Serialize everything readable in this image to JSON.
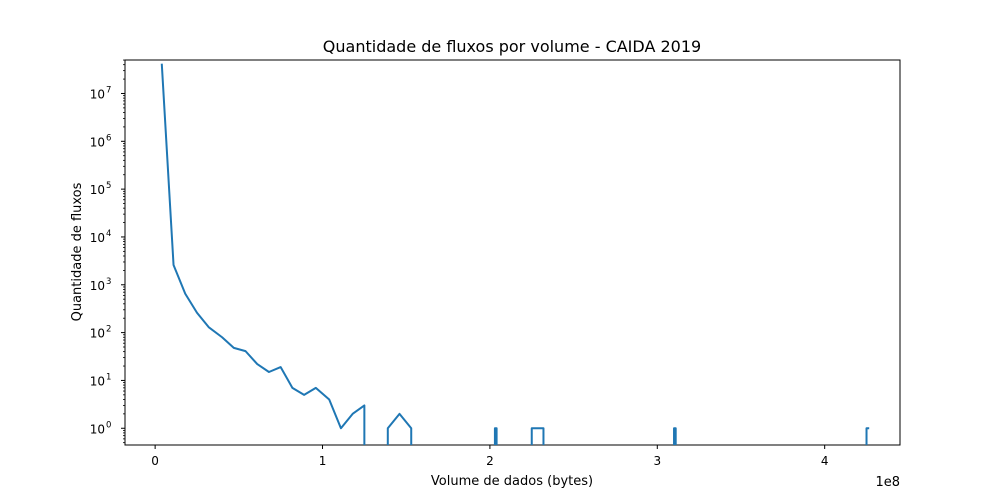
{
  "chart_data": {
    "type": "line",
    "title": "Quantidade de fluxos por volume - CAIDA 2019",
    "xlabel": "Volume de dados (bytes)",
    "ylabel": "Quantidade de fluxos",
    "x_offset_label": "1e8",
    "x_scale": "linear",
    "y_scale": "log",
    "xlim": [
      -0.18,
      4.45
    ],
    "ylim_log10": [
      -0.35,
      7.7
    ],
    "x_ticks": [
      {
        "value": 0,
        "label": "0"
      },
      {
        "value": 1,
        "label": "1"
      },
      {
        "value": 2,
        "label": "2"
      },
      {
        "value": 3,
        "label": "3"
      },
      {
        "value": 4,
        "label": "4"
      }
    ],
    "y_ticks": [
      {
        "exp": 0,
        "base": "10",
        "sup": "0"
      },
      {
        "exp": 1,
        "base": "10",
        "sup": "1"
      },
      {
        "exp": 2,
        "base": "10",
        "sup": "2"
      },
      {
        "exp": 3,
        "base": "10",
        "sup": "3"
      },
      {
        "exp": 4,
        "base": "10",
        "sup": "4"
      },
      {
        "exp": 5,
        "base": "10",
        "sup": "5"
      },
      {
        "exp": 6,
        "base": "10",
        "sup": "6"
      },
      {
        "exp": 7,
        "base": "10",
        "sup": "7"
      }
    ],
    "grid": false,
    "line_color": "#1f77b4",
    "series": [
      {
        "x": [
          0.04,
          0.11,
          0.18,
          0.25,
          0.32,
          0.4,
          0.47,
          0.54,
          0.61,
          0.68,
          0.75,
          0.82,
          0.89,
          0.96,
          1.04,
          1.11,
          1.18,
          1.25,
          1.25,
          1.39,
          1.39,
          1.46,
          1.53,
          1.53,
          2.03,
          2.03,
          2.04,
          2.04,
          2.25,
          2.25,
          2.32,
          2.32,
          3.1,
          3.1,
          3.11,
          3.11,
          4.25,
          4.25,
          4.26
        ],
        "y": [
          40000000,
          2600,
          650,
          260,
          130,
          80,
          48,
          41,
          22,
          15,
          19,
          7,
          5,
          7,
          4,
          1,
          2,
          3,
          0,
          0,
          1,
          2,
          1,
          0,
          0,
          1,
          1,
          0,
          0,
          1,
          1,
          0,
          0,
          1,
          1,
          0,
          0,
          1,
          1
        ]
      }
    ]
  }
}
